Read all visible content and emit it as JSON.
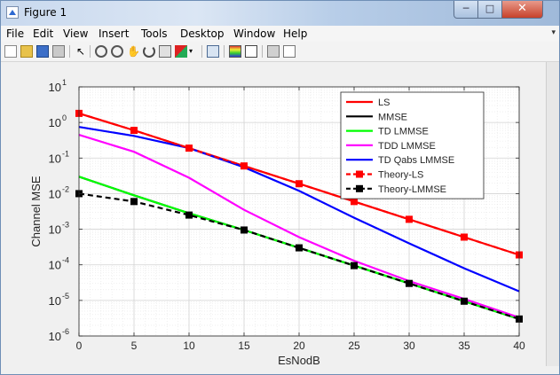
{
  "window": {
    "title": "Figure 1"
  },
  "menu": [
    "File",
    "Edit",
    "View",
    "Insert",
    "Tools",
    "Desktop",
    "Window",
    "Help"
  ],
  "toolbar": {
    "icons": [
      "new-figure-icon",
      "open-file-icon",
      "save-icon",
      "print-icon",
      "pointer-icon",
      "zoom-in-icon",
      "zoom-out-icon",
      "pan-icon",
      "rotate-3d-icon",
      "data-cursor-icon",
      "brush-icon",
      "link-plot-icon",
      "insert-colorbar-icon",
      "insert-legend-icon",
      "hide-plot-tools-icon",
      "show-plot-tools-icon"
    ]
  },
  "chart_data": {
    "type": "line",
    "xlabel": "EsNodB",
    "ylabel": "Channel MSE",
    "xlim": [
      0,
      40
    ],
    "ylim": [
      1e-06,
      10
    ],
    "yscale": "log",
    "grid": true,
    "legend_position": "top-right",
    "x_ticks": [
      "0",
      "5",
      "10",
      "15",
      "20",
      "25",
      "30",
      "35",
      "40"
    ],
    "y_ticks": [
      {
        "base": "10",
        "exp": "1",
        "value": 10
      },
      {
        "base": "10",
        "exp": "0",
        "value": 1
      },
      {
        "base": "10",
        "exp": "-1",
        "value": 0.1
      },
      {
        "base": "10",
        "exp": "-2",
        "value": 0.01
      },
      {
        "base": "10",
        "exp": "-3",
        "value": 0.001
      },
      {
        "base": "10",
        "exp": "-4",
        "value": 0.0001
      },
      {
        "base": "10",
        "exp": "-5",
        "value": 1e-05
      },
      {
        "base": "10",
        "exp": "-6",
        "value": 1e-06
      }
    ],
    "x": [
      0,
      5,
      10,
      15,
      20,
      25,
      30,
      35,
      40
    ],
    "series": [
      {
        "name": "LS",
        "color": "#ff0000",
        "dash": "solid",
        "marker": "none",
        "values": [
          1.8,
          0.6,
          0.19,
          0.06,
          0.019,
          0.006,
          0.0019,
          0.0006,
          0.00019
        ]
      },
      {
        "name": "MMSE",
        "color": "#000000",
        "dash": "solid",
        "marker": "none",
        "values": [
          0.03,
          0.009,
          0.0028,
          0.00095,
          0.0003,
          9.5e-05,
          3e-05,
          9.5e-06,
          3e-06
        ]
      },
      {
        "name": "TD LMMSE",
        "color": "#00ff00",
        "dash": "solid",
        "marker": "none",
        "values": [
          0.03,
          0.009,
          0.0028,
          0.00095,
          0.0003,
          9.5e-05,
          3e-05,
          9.5e-06,
          3e-06
        ]
      },
      {
        "name": "TDD LMMSE",
        "color": "#ff00ff",
        "dash": "solid",
        "marker": "none",
        "values": [
          0.45,
          0.15,
          0.028,
          0.0035,
          0.0006,
          0.00013,
          3.5e-05,
          1.1e-05,
          3.3e-06
        ]
      },
      {
        "name": "TD Qabs LMMSE",
        "color": "#0000ff",
        "dash": "solid",
        "marker": "none",
        "values": [
          0.75,
          0.42,
          0.19,
          0.055,
          0.012,
          0.0021,
          0.0004,
          8e-05,
          1.8e-05
        ]
      },
      {
        "name": "Theory-LS",
        "color": "#ff0000",
        "dash": "dashed",
        "marker": "square",
        "values": [
          1.8,
          0.6,
          0.19,
          0.06,
          0.019,
          0.006,
          0.0019,
          0.0006,
          0.00019
        ]
      },
      {
        "name": "Theory-LMMSE",
        "color": "#000000",
        "dash": "dashed",
        "marker": "square",
        "values": [
          0.01,
          0.006,
          0.0025,
          0.00095,
          0.0003,
          9.5e-05,
          3e-05,
          9.5e-06,
          3e-06
        ]
      }
    ]
  }
}
